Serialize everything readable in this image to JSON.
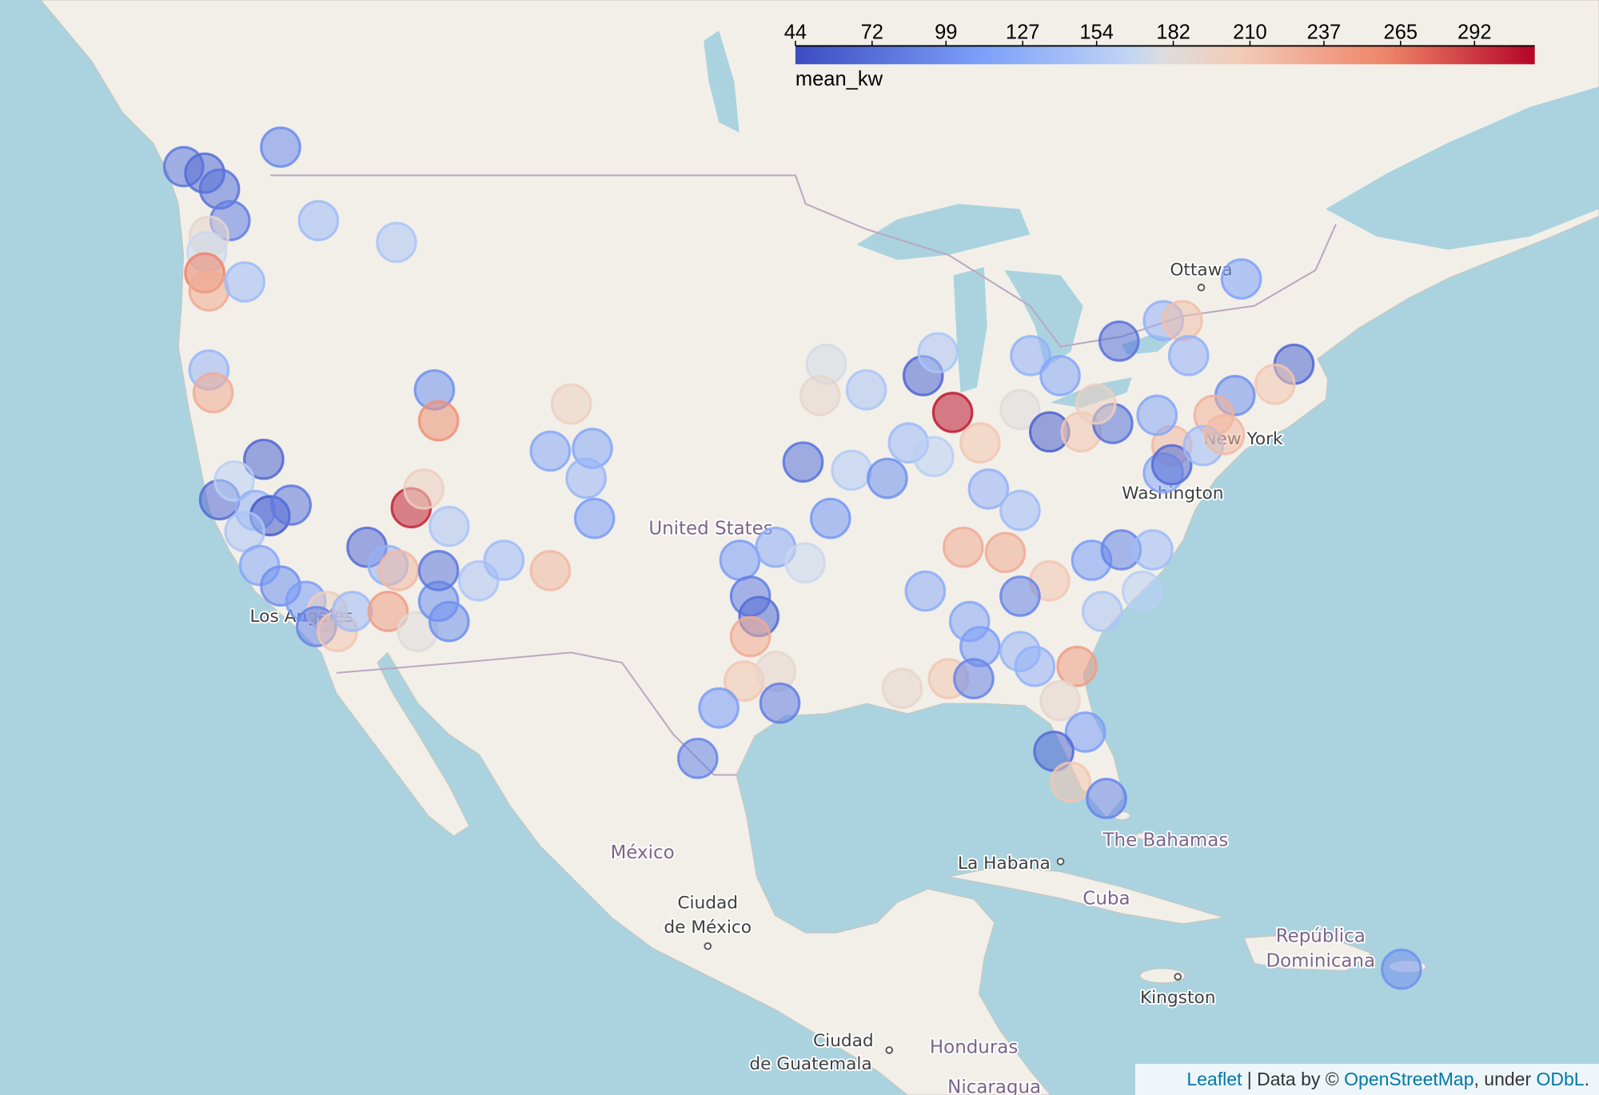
{
  "chart_data": {
    "type": "bubble-map",
    "colorbar_label": "mean_kw",
    "clim": [
      44,
      314
    ],
    "cticks": [
      44,
      72,
      99,
      127,
      154,
      182,
      210,
      237,
      265,
      292
    ],
    "lon": [
      -124.0,
      -123.0,
      -122.3,
      -121.8,
      -122.8,
      -122.9,
      -123.0,
      -122.8,
      -121.1,
      -119.4,
      -117.6,
      -113.9,
      -122.8,
      -122.6,
      -120.2,
      -122.3,
      -121.6,
      -120.6,
      -119.9,
      -118.9,
      -121.1,
      -120.4,
      -119.4,
      -118.2,
      -117.2,
      -117.7,
      -116.7,
      -116.0,
      -115.3,
      -114.3,
      -113.8,
      -114.3,
      -112.9,
      -111.9,
      -111.9,
      -111.4,
      -112.1,
      -111.9,
      -113.2,
      -112.6,
      -111.4,
      -110.0,
      -108.8,
      -106.6,
      -105.6,
      -106.6,
      -104.6,
      -104.9,
      -104.5,
      -93.5,
      -93.8,
      -91.6,
      -94.6,
      -92.3,
      -93.3,
      -97.6,
      -95.9,
      -94.5,
      -97.1,
      -96.7,
      -97.1,
      -97.4,
      -95.9,
      -95.7,
      -98.6,
      -99.6,
      -90.6,
      -88.9,
      -87.5,
      -88.2,
      -89.6,
      -88.4,
      -86.2,
      -84.3,
      -82.9,
      -81.4,
      -79.9,
      -80.7,
      -83.8,
      -82.4,
      -79.6,
      -77.5,
      -76.6,
      -76.3,
      -73.8,
      -71.3,
      -72.2,
      -74.1,
      -75.1,
      -77.1,
      -77.5,
      -77.1,
      -77.8,
      -75.6,
      -74.6,
      -85.8,
      -84.3,
      -87.0,
      -85.0,
      -82.9,
      -84.3,
      -80.9,
      -79.5,
      -78.0,
      -78.5,
      -80.4,
      -88.8,
      -86.7,
      -86.2,
      -84.3,
      -83.6,
      -81.6,
      -82.4,
      -89.9,
      -87.7,
      -86.5,
      -81.2,
      -82.7,
      -81.9,
      -80.2,
      -66.2
    ],
    "lat": [
      49.3,
      49.1,
      48.6,
      47.6,
      47.1,
      46.6,
      45.9,
      45.3,
      45.6,
      49.9,
      47.6,
      46.9,
      42.6,
      41.8,
      39.4,
      37.9,
      38.6,
      37.5,
      37.3,
      37.7,
      36.7,
      35.4,
      34.6,
      34.0,
      33.6,
      33.0,
      32.8,
      33.6,
      36.1,
      35.4,
      35.2,
      33.6,
      32.8,
      34.0,
      35.2,
      33.2,
      41.9,
      40.8,
      37.6,
      38.3,
      36.9,
      34.8,
      35.6,
      35.2,
      41.4,
      39.7,
      39.8,
      38.7,
      37.2,
      42.8,
      41.7,
      41.9,
      39.3,
      39.0,
      37.2,
      35.6,
      36.1,
      35.5,
      34.2,
      33.4,
      32.6,
      30.8,
      31.2,
      29.9,
      29.7,
      27.6,
      38.7,
      42.4,
      41.1,
      43.2,
      40.0,
      39.5,
      40.0,
      41.2,
      40.4,
      40.4,
      40.7,
      41.4,
      43.1,
      42.4,
      43.6,
      44.3,
      44.3,
      43.1,
      45.7,
      42.8,
      42.1,
      41.7,
      41.0,
      39.9,
      38.9,
      39.2,
      41.0,
      39.9,
      40.3,
      38.3,
      37.5,
      36.1,
      35.9,
      34.8,
      34.2,
      35.6,
      36.0,
      36.0,
      34.4,
      33.6,
      34.4,
      33.2,
      32.2,
      32.0,
      31.4,
      31.4,
      30.0,
      30.5,
      30.9,
      30.9,
      28.7,
      27.9,
      26.6,
      25.9,
      18.4
    ],
    "mean_kw": [
      80,
      70,
      75,
      85,
      190,
      170,
      260,
      230,
      140,
      95,
      140,
      150,
      135,
      230,
      65,
      70,
      160,
      130,
      55,
      80,
      150,
      120,
      100,
      110,
      200,
      90,
      210,
      140,
      70,
      130,
      220,
      240,
      180,
      100,
      80,
      100,
      100,
      250,
      300,
      200,
      150,
      150,
      140,
      220,
      200,
      120,
      120,
      135,
      110,
      175,
      190,
      150,
      75,
      155,
      105,
      110,
      125,
      170,
      85,
      70,
      230,
      210,
      190,
      85,
      110,
      90,
      100,
      65,
      305,
      150,
      140,
      160,
      210,
      180,
      60,
      210,
      75,
      200,
      130,
      120,
      75,
      130,
      215,
      130,
      115,
      65,
      210,
      100,
      225,
      220,
      120,
      70,
      120,
      140,
      220,
      130,
      140,
      230,
      230,
      210,
      90,
      110,
      90,
      140,
      160,
      150,
      125,
      120,
      110,
      135,
      130,
      240,
      190,
      190,
      210,
      90,
      110,
      70,
      210,
      90,
      100
    ]
  },
  "map_labels": {
    "ottawa": "Ottawa",
    "new_york": "New York",
    "washington": "Washington",
    "united_states": "United States",
    "los_angeles": "Los Angeles",
    "mexico": "México",
    "ciudad_de_mexico": [
      "Ciudad",
      "de México"
    ],
    "bahamas": "The Bahamas",
    "la_habana": "La Habana",
    "cuba": "Cuba",
    "kingston": "Kingston",
    "republica_dominicana": [
      "República",
      "Dominicana"
    ],
    "ciudad_de_guatemala": [
      "Ciudad",
      "de Guatemala"
    ],
    "honduras": "Honduras",
    "nicaragua": "Nicaragua"
  },
  "attribution": {
    "leaflet": "Leaflet",
    "data_by": " | Data by © ",
    "osm": "OpenStreetMap",
    "under": ", under ",
    "odbl": "ODbL",
    "end": "."
  }
}
